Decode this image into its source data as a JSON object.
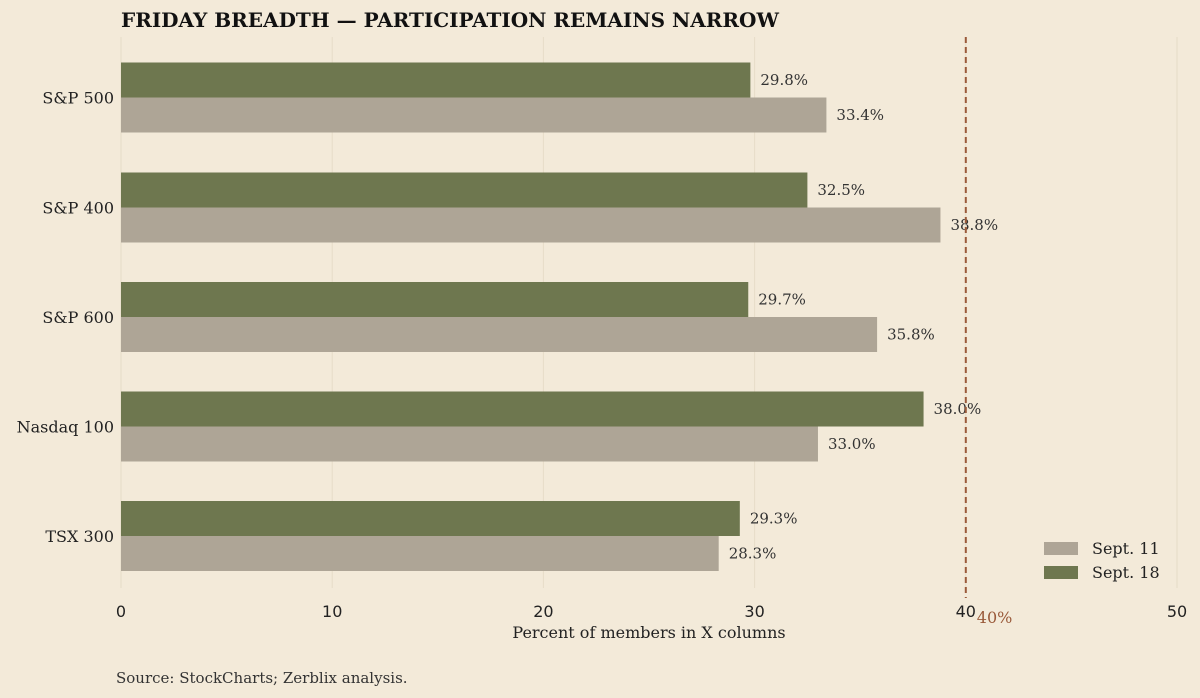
{
  "chart_data": {
    "type": "bar",
    "orientation": "horizontal",
    "title": "FRIDAY BREADTH — PARTICIPATION REMAINS NARROW",
    "categories": [
      "S&P 500",
      "S&P 400",
      "S&P 600",
      "Nasdaq 100",
      "TSX 300"
    ],
    "series": [
      {
        "name": "Sept. 18",
        "color": "#6e774f",
        "values": [
          29.8,
          32.5,
          29.7,
          38.0,
          29.3
        ],
        "labels": [
          "29.8%",
          "32.5%",
          "29.7%",
          "38.0%",
          "29.3%"
        ]
      },
      {
        "name": "Sept. 11",
        "color": "#aea596",
        "values": [
          33.4,
          38.8,
          35.8,
          33.0,
          28.3
        ],
        "labels": [
          "33.4%",
          "38.8%",
          "35.8%",
          "33.0%",
          "28.3%"
        ]
      }
    ],
    "xlabel": "Percent of members in X columns",
    "ylabel": "",
    "xlim": [
      0,
      50
    ],
    "xticks": [
      "0",
      "10",
      "20",
      "30",
      "40",
      "50"
    ],
    "reference_line": {
      "value": 40,
      "label": "40%",
      "color": "#9a5a3a",
      "style": "dashed"
    },
    "legend": {
      "position": "bottom-right",
      "entries": [
        "Sept. 11",
        "Sept. 18"
      ]
    },
    "grid": true
  },
  "footer": {
    "source": "Source: StockCharts; Zerblix analysis."
  }
}
